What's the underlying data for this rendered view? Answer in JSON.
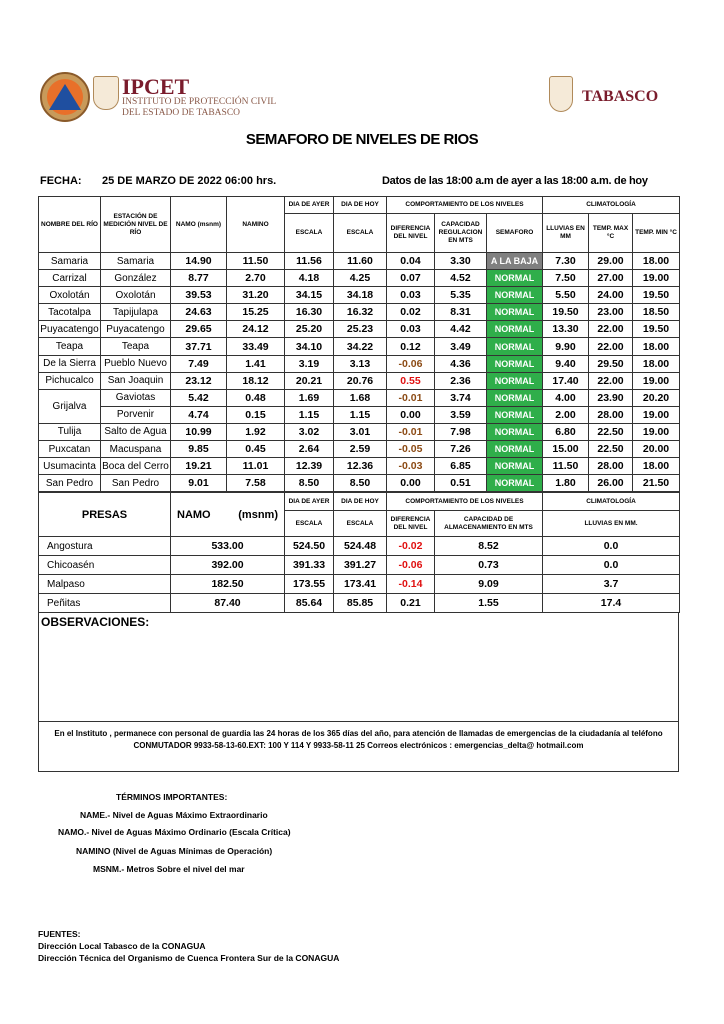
{
  "header": {
    "org_name": "IPCET",
    "org_sub1": "INSTITUTO DE PROTECCIÓN CIVIL",
    "org_sub2": "DEL ESTADO DE TABASCO",
    "state": "TABASCO",
    "title": "SEMAFORO DE NIVELES DE RIOS",
    "fecha_label": "FECHA:",
    "fecha_value": "25 DE MARZO DE 2022 06:00 hrs.",
    "periodo": "Datos de las 18:00 a.m de ayer a las 18:00 a.m. de hoy"
  },
  "rivers_table": {
    "headers": {
      "nombre": "NOMBRE DEL RÍO",
      "estacion": "ESTACIÓN DE MEDICIÓN NIVEL DE RÍO",
      "namo": "NAMO (msnm)",
      "namino": "NAMINO",
      "ayer": "DIA DE AYER",
      "hoy": "DIA DE HOY",
      "escala": "ESCALA",
      "comportamiento": "COMPORTAMIENTO DE LOS NIVELES",
      "diferencia": "DIFERENCIA DEL NIVEL",
      "capacidad": "CAPACIDAD REGULACION EN MTS",
      "semaforo": "SEMAFORO",
      "climatologia": "CLIMATOLOGÍA",
      "lluvias": "LLUVIAS EN MM",
      "tmax": "TEMP. MAX °C",
      "tmin": "TEMP. MIN °C"
    },
    "rows": [
      {
        "rio": "Samaria",
        "estacion": "Samaria",
        "namo": "14.90",
        "namino": "11.50",
        "ayer": "11.56",
        "hoy": "11.60",
        "dif": "0.04",
        "cap": "3.30",
        "semaforo": "A LA BAJA",
        "lluvia": "7.30",
        "tmax": "29.00",
        "tmin": "18.00"
      },
      {
        "rio": "Carrizal",
        "estacion": "González",
        "namo": "8.77",
        "namino": "2.70",
        "ayer": "4.18",
        "hoy": "4.25",
        "dif": "0.07",
        "cap": "4.52",
        "semaforo": "NORMAL",
        "lluvia": "7.50",
        "tmax": "27.00",
        "tmin": "19.00"
      },
      {
        "rio": "Oxolotán",
        "estacion": "Oxolotán",
        "namo": "39.53",
        "namino": "31.20",
        "ayer": "34.15",
        "hoy": "34.18",
        "dif": "0.03",
        "cap": "5.35",
        "semaforo": "NORMAL",
        "lluvia": "5.50",
        "tmax": "24.00",
        "tmin": "19.50"
      },
      {
        "rio": "Tacotalpa",
        "estacion": "Tapijulapa",
        "namo": "24.63",
        "namino": "15.25",
        "ayer": "16.30",
        "hoy": "16.32",
        "dif": "0.02",
        "cap": "8.31",
        "semaforo": "NORMAL",
        "lluvia": "19.50",
        "tmax": "23.00",
        "tmin": "18.50"
      },
      {
        "rio": "Puyacatengo",
        "estacion": "Puyacatengo",
        "namo": "29.65",
        "namino": "24.12",
        "ayer": "25.20",
        "hoy": "25.23",
        "dif": "0.03",
        "cap": "4.42",
        "semaforo": "NORMAL",
        "lluvia": "13.30",
        "tmax": "22.00",
        "tmin": "19.50"
      },
      {
        "rio": "Teapa",
        "estacion": "Teapa",
        "namo": "37.71",
        "namino": "33.49",
        "ayer": "34.10",
        "hoy": "34.22",
        "dif": "0.12",
        "cap": "3.49",
        "semaforo": "NORMAL",
        "lluvia": "9.90",
        "tmax": "22.00",
        "tmin": "18.00"
      },
      {
        "rio": "De la Sierra",
        "estacion": "Pueblo Nuevo",
        "namo": "7.49",
        "namino": "1.41",
        "ayer": "3.19",
        "hoy": "3.13",
        "dif": "-0.06",
        "cap": "4.36",
        "semaforo": "NORMAL",
        "lluvia": "9.40",
        "tmax": "29.50",
        "tmin": "18.00"
      },
      {
        "rio": "Pichucalco",
        "estacion": "San Joaquin",
        "namo": "23.12",
        "namino": "18.12",
        "ayer": "20.21",
        "hoy": "20.76",
        "dif": "0.55",
        "cap": "2.36",
        "semaforo": "NORMAL",
        "lluvia": "17.40",
        "tmax": "22.00",
        "tmin": "19.00"
      },
      {
        "rio": "Grijalva",
        "estacion": "Gaviotas",
        "namo": "5.42",
        "namino": "0.48",
        "ayer": "1.69",
        "hoy": "1.68",
        "dif": "-0.01",
        "cap": "3.74",
        "semaforo": "NORMAL",
        "lluvia": "4.00",
        "tmax": "23.90",
        "tmin": "20.20"
      },
      {
        "rio": "",
        "estacion": "Porvenir",
        "namo": "4.74",
        "namino": "0.15",
        "ayer": "1.15",
        "hoy": "1.15",
        "dif": "0.00",
        "cap": "3.59",
        "semaforo": "NORMAL",
        "lluvia": "2.00",
        "tmax": "28.00",
        "tmin": "19.00"
      },
      {
        "rio": "Tulija",
        "estacion": "Salto de Agua",
        "namo": "10.99",
        "namino": "1.92",
        "ayer": "3.02",
        "hoy": "3.01",
        "dif": "-0.01",
        "cap": "7.98",
        "semaforo": "NORMAL",
        "lluvia": "6.80",
        "tmax": "22.50",
        "tmin": "19.00"
      },
      {
        "rio": "Puxcatan",
        "estacion": "Macuspana",
        "namo": "9.85",
        "namino": "0.45",
        "ayer": "2.64",
        "hoy": "2.59",
        "dif": "-0.05",
        "cap": "7.26",
        "semaforo": "NORMAL",
        "lluvia": "15.00",
        "tmax": "22.50",
        "tmin": "20.00"
      },
      {
        "rio": "Usumacinta",
        "estacion": "Boca del Cerro",
        "namo": "19.21",
        "namino": "11.01",
        "ayer": "12.39",
        "hoy": "12.36",
        "dif": "-0.03",
        "cap": "6.85",
        "semaforo": "NORMAL",
        "lluvia": "11.50",
        "tmax": "28.00",
        "tmin": "18.00"
      },
      {
        "rio": "San Pedro",
        "estacion": "San Pedro",
        "namo": "9.01",
        "namino": "7.58",
        "ayer": "8.50",
        "hoy": "8.50",
        "dif": "0.00",
        "cap": "0.51",
        "semaforo": "NORMAL",
        "lluvia": "1.80",
        "tmax": "26.00",
        "tmin": "21.50"
      }
    ]
  },
  "dams_table": {
    "headers": {
      "presas": "PRESAS",
      "namo": "NAMO",
      "unit": "(msnm)",
      "ayer": "DIA DE AYER",
      "hoy": "DIA DE HOY",
      "escala": "ESCALA",
      "comportamiento": "COMPORTAMIENTO DE LOS NIVELES",
      "diferencia": "DIFERENCIA DEL NIVEL",
      "capacidad": "CAPACIDAD DE ALMACENAMIENTO EN MTS",
      "climatologia": "CLIMATOLOGÍA",
      "lluvias": "LLUVIAS EN MM."
    },
    "rows": [
      {
        "presa": "Angostura",
        "namo": "533.00",
        "ayer": "524.50",
        "hoy": "524.48",
        "dif": "-0.02",
        "cap": "8.52",
        "lluvia": "0.0"
      },
      {
        "presa": "Chicoasén",
        "namo": "392.00",
        "ayer": "391.33",
        "hoy": "391.27",
        "dif": "-0.06",
        "cap": "0.73",
        "lluvia": "0.0"
      },
      {
        "presa": "Malpaso",
        "namo": "182.50",
        "ayer": "173.55",
        "hoy": "173.41",
        "dif": "-0.14",
        "cap": "9.09",
        "lluvia": "3.7"
      },
      {
        "presa": "Peñitas",
        "namo": "87.40",
        "ayer": "85.64",
        "hoy": "85.85",
        "dif": "0.21",
        "cap": "1.55",
        "lluvia": "17.4"
      }
    ]
  },
  "observaciones": {
    "title": "OBSERVACIONES:",
    "note1": "En el Instituto , permanece con personal de guardia las 24 horas de los 365 días del año, para atención de llamadas de emergencias de la ciudadanía al teléfono",
    "note2": "CONMUTADOR  9933-58-13-60.EXT: 100 Y 114  Y 9933-58-11 25   Correos electrónicos : emergencias_delta@ hotmail.com"
  },
  "terminos": {
    "title": "TÉRMINOS IMPORTANTES:",
    "name": "NAME.- Nivel de Aguas Máximo Extraordinario",
    "namo": "NAMO.- Nivel de Aguas Máximo Ordinario (Escala Crítica)",
    "namino": "NAMINO (Nivel de Aguas Mínimas de Operación)",
    "msnm": "MSNM.- Metros Sobre el nivel del mar"
  },
  "fuentes": {
    "title": "FUENTES:",
    "f1": "Dirección Local Tabasco de la CONAGUA",
    "f2": "Dirección Técnica del Organismo de Cuenca Frontera Sur de la CONAGUA"
  },
  "colors": {
    "normal": "#2fae4a",
    "a_la_baja": "#808080",
    "negative": "#8b4a14",
    "alert": "#e01010",
    "brand": "#7a1c2c"
  }
}
